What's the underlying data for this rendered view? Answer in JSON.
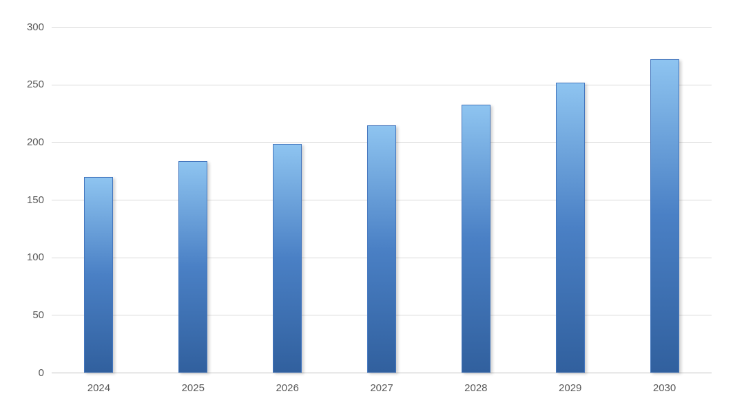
{
  "chart_data": {
    "type": "bar",
    "title": "",
    "xlabel": "",
    "ylabel": "",
    "categories": [
      "2024",
      "2025",
      "2026",
      "2027",
      "2028",
      "2029",
      "2030"
    ],
    "values": [
      170,
      184,
      199,
      215,
      233,
      252,
      272
    ],
    "ylim": [
      0,
      300
    ],
    "ytick_interval": 50,
    "yticks": [
      0,
      50,
      100,
      150,
      200,
      250,
      300
    ],
    "grid": true,
    "legend": false,
    "colors": {
      "bar_gradient_top": "#8ec4f0",
      "bar_gradient_mid": "#4a80c5",
      "bar_gradient_bottom": "#31609e",
      "bar_border": "#4376be",
      "gridline": "#d9d9d9",
      "axis_line": "#bfbfbf",
      "tick_label": "#595959",
      "background": "#ffffff"
    }
  }
}
